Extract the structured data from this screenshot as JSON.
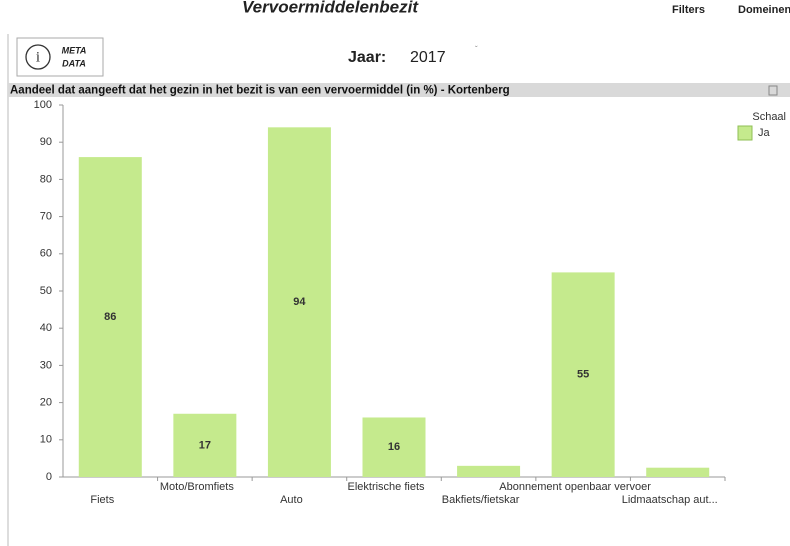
{
  "header": {
    "title": "Vervoermiddelenbezit",
    "menu": [
      "Filters",
      "Domeinen"
    ]
  },
  "meta_button": {
    "label": [
      "META",
      "DATA"
    ]
  },
  "year_selector": {
    "label": "Jaar:",
    "value": "2017"
  },
  "chart_data": {
    "type": "bar",
    "title": "Aandeel dat aangeeft dat het gezin in het bezit is van een vervoermiddel (in %) - Kortenberg",
    "categories": [
      "Fiets",
      "Moto/Bromfiets",
      "Auto",
      "Elektrische fiets",
      "Bakfiets/fietskar",
      "Abonnement openbaar vervoer",
      "Lidmaatschap aut..."
    ],
    "series": [
      {
        "name": "Ja",
        "color": "#c5ea8d",
        "values": [
          86,
          17,
          94,
          16,
          3,
          55,
          2.5
        ]
      }
    ],
    "value_labels": [
      "86",
      "17",
      "94",
      "16",
      null,
      "55",
      null
    ],
    "legend_title": "Schaal",
    "ylim": [
      0,
      100
    ],
    "yticks": [
      0,
      10,
      20,
      30,
      40,
      50,
      60,
      70,
      80,
      90,
      100
    ],
    "legend": "top-right"
  }
}
